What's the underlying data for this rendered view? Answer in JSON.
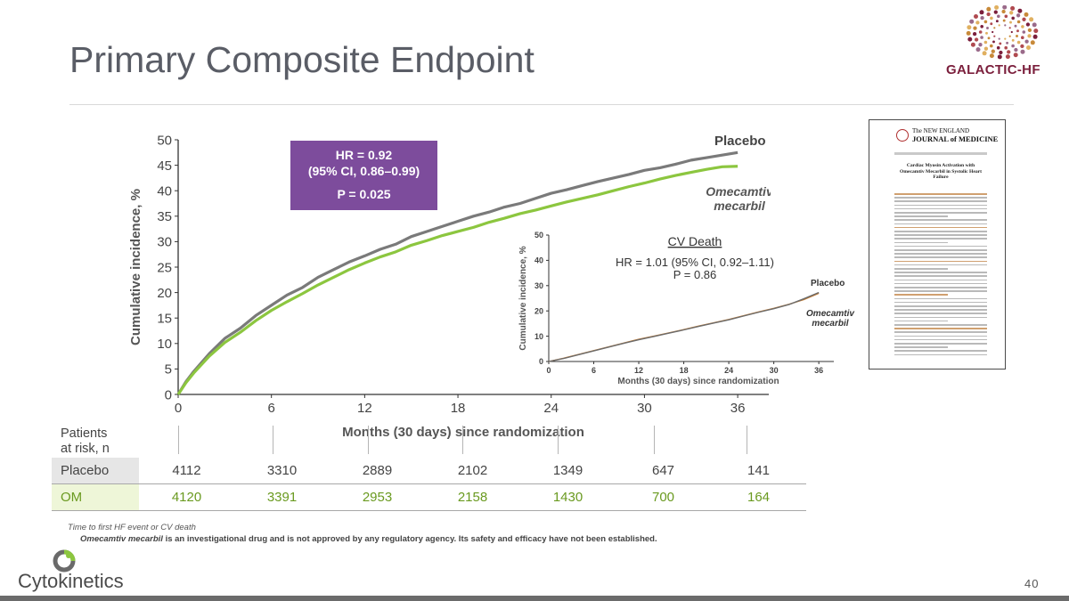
{
  "title": "Primary Composite Endpoint",
  "brand": {
    "logo_text": "GALACTIC-HF",
    "company": "Cytokinetics"
  },
  "colors": {
    "placebo": "#7a7a7a",
    "om": "#8cc63f",
    "accent_purple": "#7d4c9c",
    "inset_placebo": "#c47a30",
    "inset_om": "#6b6b6b"
  },
  "hr_box": {
    "line1": "HR = 0.92",
    "line2": "(95% CI, 0.86–0.99)",
    "line3": "P = 0.025"
  },
  "chart_data": [
    {
      "type": "line",
      "title": "Primary Composite Endpoint",
      "xlabel": "Months (30 days) since randomization",
      "ylabel": "Cumulative incidence, %",
      "xlim": [
        0,
        38
      ],
      "ylim": [
        0,
        50
      ],
      "xticks": [
        0,
        6,
        12,
        18,
        24,
        30,
        36
      ],
      "yticks": [
        0,
        5,
        10,
        15,
        20,
        25,
        30,
        35,
        40,
        45,
        50
      ],
      "series": [
        {
          "name": "Placebo",
          "label": "Placebo",
          "x": [
            0,
            0.5,
            1,
            2,
            3,
            4,
            5,
            6,
            7,
            8,
            9,
            10,
            11,
            12,
            13,
            14,
            15,
            16,
            17,
            18,
            19,
            20,
            21,
            22,
            23,
            24,
            25,
            26,
            27,
            28,
            29,
            30,
            31,
            32,
            33,
            34,
            35,
            36
          ],
          "y": [
            0,
            2.5,
            4.5,
            8,
            11,
            13,
            15.5,
            17.5,
            19.5,
            21,
            23,
            24.5,
            26,
            27.2,
            28.5,
            29.5,
            31,
            32,
            33,
            34,
            35,
            35.8,
            36.8,
            37.5,
            38.5,
            39.5,
            40.2,
            41,
            41.8,
            42.5,
            43.2,
            44,
            44.5,
            45.2,
            46,
            46.5,
            47,
            47.5
          ]
        },
        {
          "name": "OM",
          "label_line1": "Omecamtiv",
          "label_line2": "mecarbil",
          "x": [
            0,
            0.5,
            1,
            2,
            3,
            4,
            5,
            6,
            7,
            8,
            9,
            10,
            11,
            12,
            13,
            14,
            15,
            16,
            17,
            18,
            19,
            20,
            21,
            22,
            23,
            24,
            25,
            26,
            27,
            28,
            29,
            30,
            31,
            32,
            33,
            34,
            35,
            36
          ],
          "y": [
            0,
            2.3,
            4.2,
            7.5,
            10.2,
            12.2,
            14.5,
            16.5,
            18.2,
            19.8,
            21.5,
            23,
            24.5,
            25.8,
            27,
            28,
            29.3,
            30.2,
            31.2,
            32,
            32.8,
            33.8,
            34.6,
            35.5,
            36.2,
            37,
            37.8,
            38.5,
            39.2,
            40,
            40.8,
            41.5,
            42.3,
            43,
            43.6,
            44.2,
            44.7,
            44.8
          ]
        }
      ]
    },
    {
      "type": "line",
      "title": "CV Death",
      "annotation_line1": "HR = 1.01 (95% CI, 0.92–1.11)",
      "annotation_line2": "P = 0.86",
      "xlabel": "Months (30 days) since randomization",
      "ylabel": "Cumulative incidence, %",
      "xlim": [
        0,
        38
      ],
      "ylim": [
        0,
        50
      ],
      "xticks": [
        0,
        6,
        12,
        18,
        24,
        30,
        36
      ],
      "yticks": [
        0,
        10,
        20,
        30,
        40,
        50
      ],
      "series": [
        {
          "name": "Placebo",
          "label": "Placebo",
          "x": [
            0,
            2,
            4,
            6,
            8,
            10,
            12,
            14,
            16,
            18,
            20,
            22,
            24,
            26,
            28,
            30,
            32,
            34,
            36
          ],
          "y": [
            0,
            1.3,
            2.8,
            4.3,
            5.8,
            7.3,
            8.8,
            10,
            11.3,
            12.6,
            14,
            15.3,
            16.6,
            18.1,
            19.6,
            21,
            22.6,
            24.5,
            27
          ]
        },
        {
          "name": "OM",
          "label_line1": "Omecamtiv",
          "label_line2": "mecarbil",
          "x": [
            0,
            2,
            4,
            6,
            8,
            10,
            12,
            14,
            16,
            18,
            20,
            22,
            24,
            26,
            28,
            30,
            32,
            34,
            36
          ],
          "y": [
            0,
            1.2,
            2.7,
            4.2,
            5.7,
            7.2,
            8.6,
            9.9,
            11.2,
            12.5,
            13.9,
            15.2,
            16.5,
            18,
            19.5,
            20.9,
            22.5,
            24.8,
            27.3
          ]
        }
      ]
    }
  ],
  "risk_table": {
    "label_line1": "Patients",
    "label_line2": "at risk, n",
    "rows": [
      {
        "name": "Placebo",
        "values": [
          "4112",
          "3310",
          "2889",
          "2102",
          "1349",
          "647",
          "141"
        ]
      },
      {
        "name": "OM",
        "values": [
          "4120",
          "3391",
          "2953",
          "2158",
          "1430",
          "700",
          "164"
        ]
      }
    ]
  },
  "journal": {
    "line1": "The NEW ENGLAND",
    "line2": "JOURNAL of MEDICINE",
    "article_title": "Cardiac Myosin Activation with Omecamtiv Mecarbil in Systolic Heart Failure"
  },
  "footnotes": {
    "line1": "Time to first HF event or CV death",
    "drug": "Omecamtiv mecarbil",
    "line2": " is an investigational drug and is not approved by any regulatory agency. Its safety and efficacy have not been established."
  },
  "page_number": "40"
}
